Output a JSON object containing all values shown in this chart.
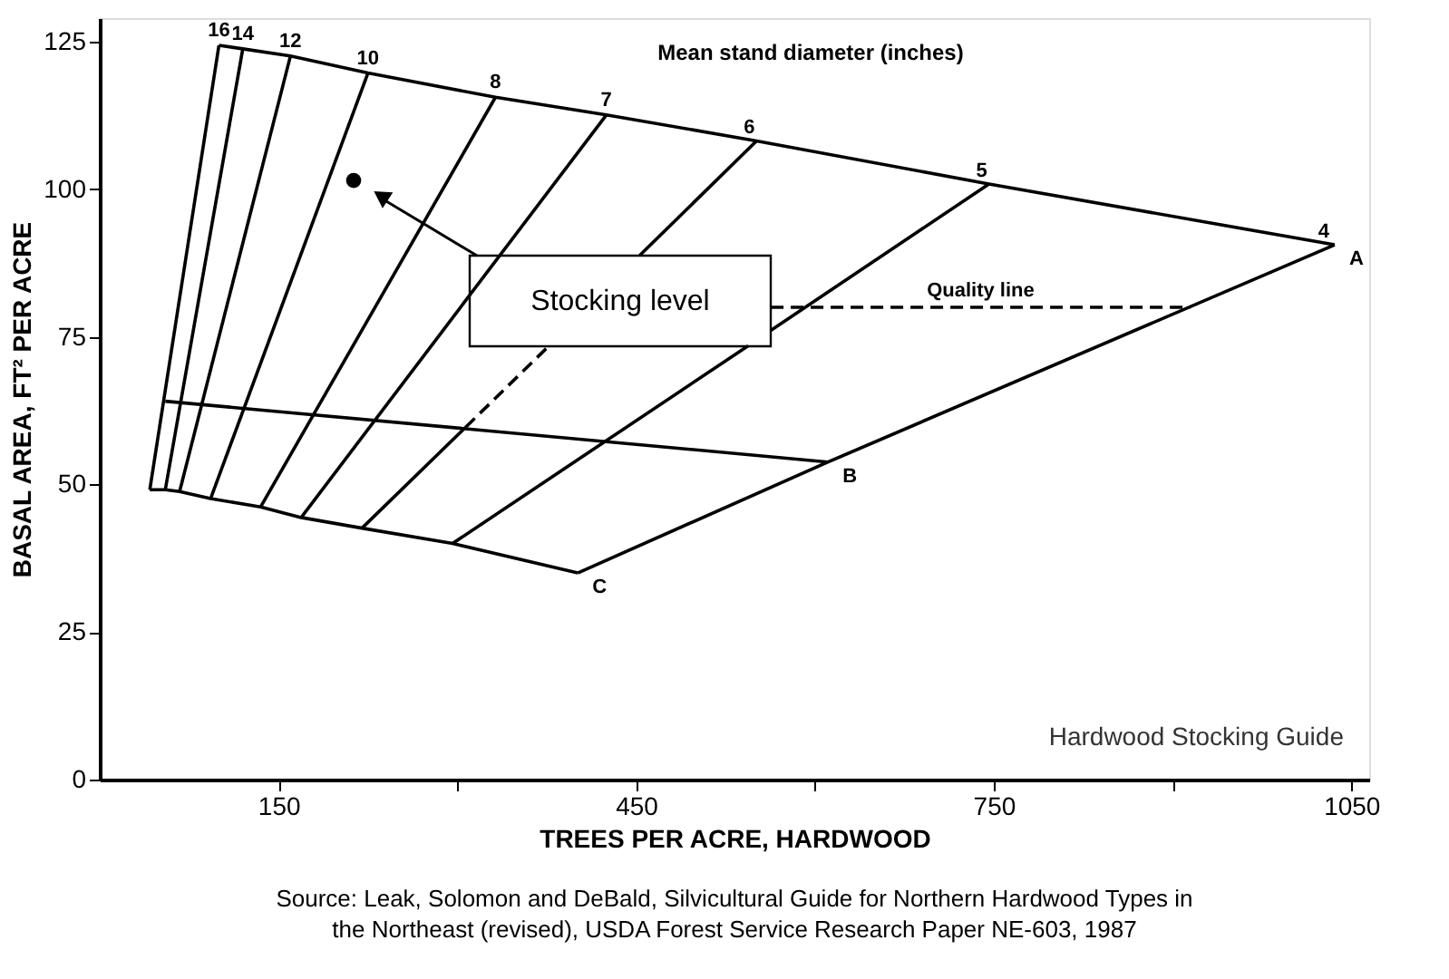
{
  "chart_data": {
    "type": "line",
    "xlabel": "TREES PER ACRE, HARDWOOD",
    "ylabel": "BASAL AREA, FT² PER ACRE",
    "xlim": [
      0,
      1065
    ],
    "ylim": [
      0,
      129
    ],
    "xticks": [
      150,
      {
        "value": 300,
        "label": null
      },
      450,
      {
        "value": 600,
        "label": null
      },
      750,
      {
        "value": 900,
        "label": null
      },
      1050
    ],
    "yticks": [
      0,
      25,
      50,
      75,
      100,
      125
    ],
    "grid": false,
    "line_style": "solid",
    "series": [
      {
        "name": "A",
        "color": "#000000",
        "x": [
          100,
          120,
          160,
          225,
          332,
          425,
          551,
          746,
          1036
        ],
        "values": [
          124.4,
          123.8,
          122.6,
          119.7,
          115.6,
          112.6,
          108.2,
          100.9,
          90.6
        ]
      },
      {
        "name": "B",
        "color": "#000000",
        "x": [
          55,
          611
        ],
        "values": [
          64.1,
          53.8
        ]
      },
      {
        "name": "C",
        "color": "#000000",
        "x": [
          42,
          55,
          67,
          93,
          135,
          169,
          220,
          296,
          401
        ],
        "values": [
          49.1,
          49.1,
          48.8,
          47.6,
          46.2,
          44.4,
          42.6,
          40,
          35
        ]
      },
      {
        "name": "16",
        "color": "#000000",
        "x": [
          42,
          100
        ],
        "values": [
          49.1,
          124.4
        ]
      },
      {
        "name": "14",
        "color": "#000000",
        "x": [
          55,
          120
        ],
        "values": [
          49.1,
          123.8
        ]
      },
      {
        "name": "12",
        "color": "#000000",
        "x": [
          67,
          160
        ],
        "values": [
          48.8,
          122.6
        ]
      },
      {
        "name": "10",
        "color": "#000000",
        "x": [
          93,
          225
        ],
        "values": [
          47.6,
          119.7
        ]
      },
      {
        "name": "8",
        "color": "#000000",
        "x": [
          135,
          332
        ],
        "values": [
          46.2,
          115.6
        ]
      },
      {
        "name": "7",
        "color": "#000000",
        "x": [
          169,
          425
        ],
        "values": [
          44.4,
          112.6
        ]
      },
      {
        "color": "#000000",
        "x": [
          220,
          307
        ],
        "values": [
          42.6,
          59.7
        ]
      },
      {
        "color": "#000000",
        "x": [
          307,
          377
        ],
        "values": [
          59.7,
          73.5
        ],
        "line_style": "dashed"
      },
      {
        "name": "6",
        "color": "#000000",
        "x": [
          453,
          551
        ],
        "values": [
          88.8,
          108.2
        ]
      },
      {
        "color": "#000000",
        "x": [
          296,
          544
        ],
        "values": [
          40,
          73.5
        ]
      },
      {
        "name": "5",
        "color": "#000000",
        "x": [
          563,
          746
        ],
        "values": [
          76.1,
          100.9
        ]
      },
      {
        "name": "4",
        "color": "#000000",
        "x": [
          401,
          611,
          1036
        ],
        "values": [
          35,
          53.8,
          90.6
        ]
      },
      {
        "name": "Quality line",
        "color": "#000000",
        "x": [
          563,
          915
        ],
        "values": [
          80,
          80
        ],
        "line_style": "dashed"
      },
      {
        "type": "scatter",
        "marker": "circle",
        "color": "#000000",
        "x": [
          213
        ],
        "values": [
          101.5
        ]
      }
    ],
    "annotations": [
      "Mean stand diameter (inches)",
      "Hardwood Stocking Guide",
      "Source: Leak, Solomon and DeBald, Silvicultural Guide for Northern Hardwood Types in the Northeast (revised), USDA Forest Service Research Paper NE-603, 1987",
      "Stocking level"
    ]
  }
}
